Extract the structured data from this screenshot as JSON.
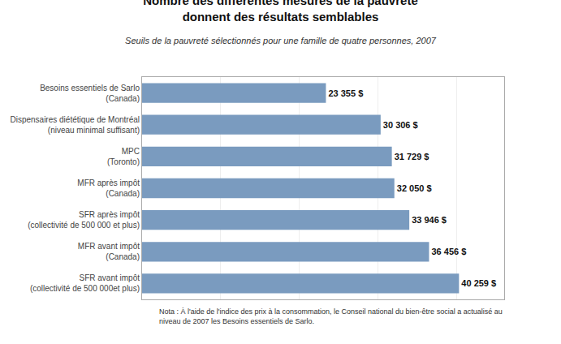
{
  "chart_data": {
    "type": "bar",
    "orientation": "horizontal",
    "title": "Nombre des différentes mesures de la pauvreté\ndonnent des résultats semblables",
    "subtitle": "Seuils de la pauvreté sélectionnés pour une famille de quatre personnes, 2007",
    "annotations": [
      "Nota : À l'aide de l'indice des prix à la consommation, le Conseil national du bien-être social a actualisé au\nniveau de 2007 les Besoins essentiels de Sarlo."
    ],
    "categories": [
      "SFR avant impôt\n(collectivité de 500 000et plus)",
      "MFR avant impôt\n(Canada)",
      "SFR après impôt\n(collectivité de 500 000 et plus)",
      "MFR après impôt\n(Canada)",
      "MPC\n(Toronto)",
      "Dispensaires diététique de Montréal\n(niveau minimal suffisant)",
      "Besoins essentiels de Sarlo\n(Canada)"
    ],
    "values": [
      40259,
      36456,
      33946,
      32050,
      31729,
      30306,
      23355
    ],
    "value_labels": [
      "40 259 $",
      "36 456 $",
      "33 946 $",
      "32 050 $",
      "31 729 $",
      "30 306 $",
      "23 355 $"
    ],
    "data_labels": true,
    "color": "#7a9bbf",
    "xlim": [
      0,
      46000
    ],
    "xticks": [
      0,
      10000,
      20000,
      30000,
      40000
    ],
    "grid": true,
    "tick_labels": "y"
  }
}
